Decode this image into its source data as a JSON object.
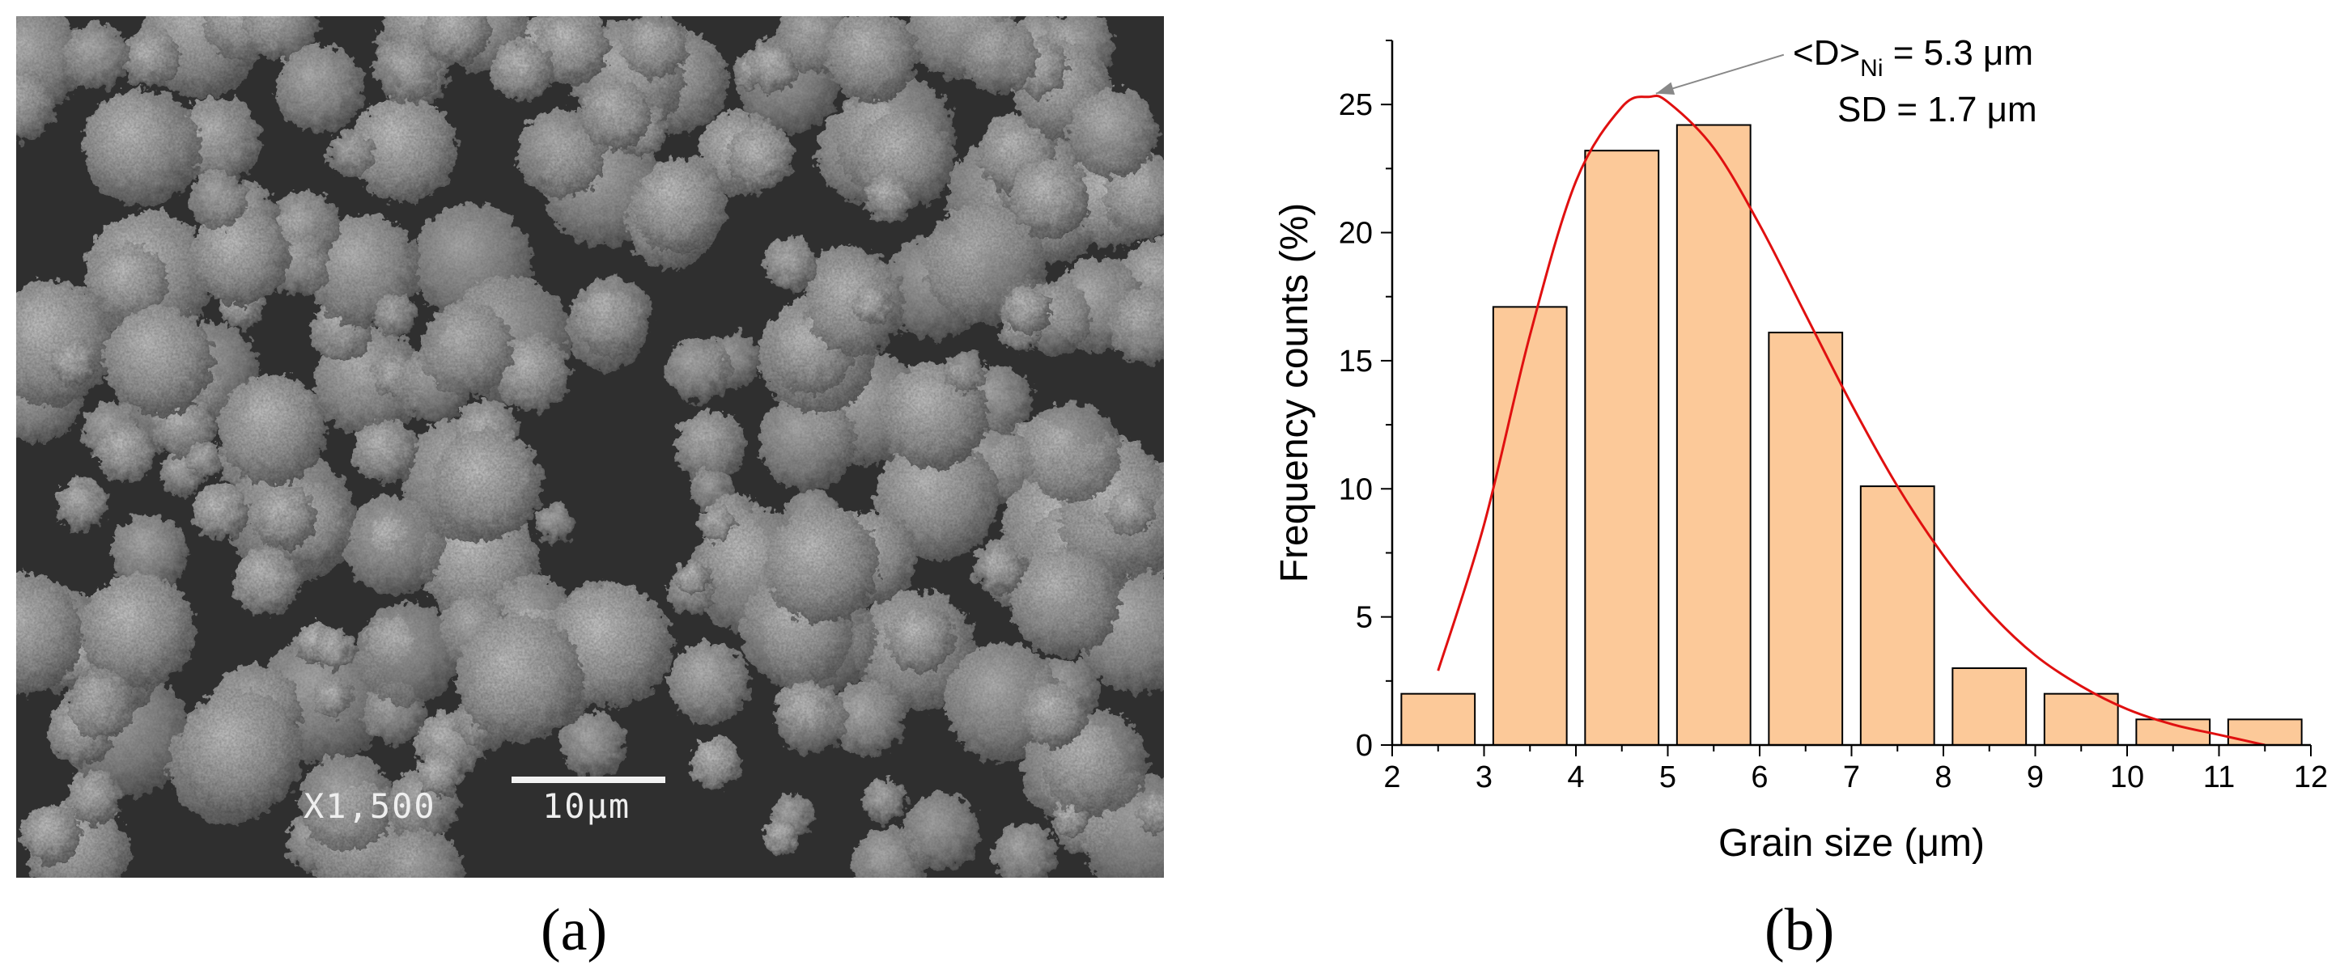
{
  "panels": {
    "a": {
      "label": "(a)",
      "magnification": "X1,500",
      "scale_bar_label": "10μm"
    },
    "b": {
      "label": "(b)"
    }
  },
  "chart_data": {
    "type": "bar",
    "title": "",
    "xlabel": "Grain size (μm)",
    "ylabel": "Frequency counts  (%)",
    "xlim": [
      2,
      12
    ],
    "ylim": [
      0,
      27.5
    ],
    "x_ticks": [
      2,
      3,
      4,
      5,
      6,
      7,
      8,
      9,
      10,
      11,
      12
    ],
    "y_ticks": [
      0,
      5,
      10,
      15,
      20,
      25
    ],
    "bars": [
      {
        "x0": 2.1,
        "x1": 2.9,
        "value": 2.0
      },
      {
        "x0": 3.1,
        "x1": 3.9,
        "value": 17.1
      },
      {
        "x0": 4.1,
        "x1": 4.9,
        "value": 23.2
      },
      {
        "x0": 5.1,
        "x1": 5.9,
        "value": 24.2
      },
      {
        "x0": 6.1,
        "x1": 6.9,
        "value": 16.1
      },
      {
        "x0": 7.1,
        "x1": 7.9,
        "value": 10.1
      },
      {
        "x0": 8.1,
        "x1": 8.9,
        "value": 3.0
      },
      {
        "x0": 9.1,
        "x1": 9.9,
        "value": 2.0
      },
      {
        "x0": 10.1,
        "x1": 10.9,
        "value": 1.0
      },
      {
        "x0": 11.1,
        "x1": 11.9,
        "value": 1.0
      }
    ],
    "fit_curve": {
      "x": [
        2.5,
        3.0,
        3.5,
        4.0,
        4.5,
        4.8,
        5.0,
        5.5,
        6.0,
        6.5,
        7.0,
        7.5,
        8.0,
        8.5,
        9.0,
        9.5,
        10.0,
        10.5,
        11.0,
        11.5
      ],
      "y": [
        2.9,
        8.6,
        16.0,
        22.0,
        24.9,
        25.3,
        25.1,
        23.3,
        20.3,
        16.8,
        13.3,
        10.1,
        7.4,
        5.2,
        3.5,
        2.3,
        1.4,
        0.8,
        0.4,
        0.0
      ]
    },
    "annotations": {
      "mean_main": "<D>",
      "mean_sub": "Ni",
      "mean_value": " = 5.3 μm",
      "sd": "SD = 1.7 μm",
      "arrow_to": {
        "x": 4.8,
        "y": 25.3
      }
    },
    "colors": {
      "bar_fill": "#fcc999",
      "bar_stroke": "#000000",
      "curve": "#e01010",
      "arrow": "#888888"
    }
  }
}
